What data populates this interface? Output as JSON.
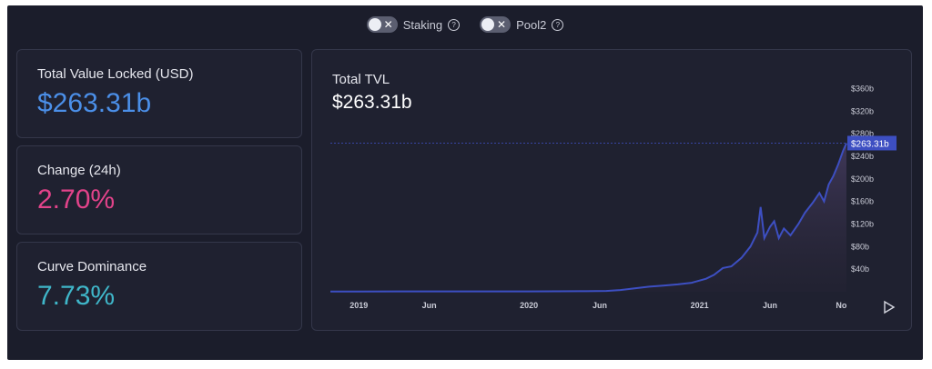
{
  "toggles": [
    {
      "label": "Staking",
      "enabled": false
    },
    {
      "label": "Pool2",
      "enabled": false
    }
  ],
  "help_glyph": "?",
  "off_glyph": "✕",
  "stats": {
    "tvl": {
      "label": "Total Value Locked (USD)",
      "value": "$263.31b",
      "color": "#4b8fe8"
    },
    "change": {
      "label": "Change (24h)",
      "value": "2.70%",
      "color": "#e2438a"
    },
    "dominance": {
      "label": "Curve Dominance",
      "value": "7.73%",
      "color": "#3fb6c9"
    }
  },
  "chart": {
    "title": "Total TVL",
    "value": "$263.31b",
    "current_label": "$263.31b",
    "play_icon": "play-icon"
  },
  "colors": {
    "background": "#1b1d2b",
    "card": "#1f2130",
    "line": "#3d4fc2",
    "label_bg": "#3d4fc2"
  },
  "chart_data": {
    "type": "area",
    "title": "Total TVL",
    "y_unit": "billion USD",
    "ylim": [
      0,
      380
    ],
    "y_ticks": [
      40,
      80,
      120,
      160,
      200,
      240,
      280,
      320,
      360
    ],
    "y_tick_labels": [
      "$40b",
      "$80b",
      "$120b",
      "$160b",
      "$200b",
      "$240b",
      "$280b",
      "$320b",
      "$360b"
    ],
    "x_ticks": [
      "2019-01-01",
      "2019-06-01",
      "2020-01-01",
      "2020-06-01",
      "2021-01-01",
      "2021-06-01",
      "2021-11-01"
    ],
    "x_tick_labels": [
      "2019",
      "Jun",
      "2020",
      "Jun",
      "2021",
      "Jun",
      "No"
    ],
    "current_value": 263.31,
    "grid": false,
    "series": [
      {
        "x": [
          "2018-11-01",
          "2019-01-01",
          "2019-04-01",
          "2019-07-01",
          "2019-10-01",
          "2020-01-01",
          "2020-03-01",
          "2020-05-01",
          "2020-06-15",
          "2020-07-15",
          "2020-08-15",
          "2020-09-15",
          "2020-10-15",
          "2020-11-15",
          "2020-12-15",
          "2021-01-15",
          "2021-02-01",
          "2021-02-20",
          "2021-03-10",
          "2021-04-01",
          "2021-04-20",
          "2021-05-05",
          "2021-05-12",
          "2021-05-20",
          "2021-06-01",
          "2021-06-10",
          "2021-06-20",
          "2021-07-01",
          "2021-07-15",
          "2021-08-01",
          "2021-08-15",
          "2021-09-01",
          "2021-09-15",
          "2021-09-25",
          "2021-10-05",
          "2021-10-15",
          "2021-10-25",
          "2021-11-05",
          "2021-11-12"
        ],
        "y": [
          0.5,
          0.5,
          0.6,
          0.6,
          0.6,
          0.7,
          0.8,
          0.9,
          1.5,
          3,
          6,
          9,
          11,
          13,
          16,
          23,
          30,
          42,
          45,
          60,
          80,
          105,
          150,
          95,
          115,
          125,
          95,
          112,
          100,
          120,
          140,
          158,
          175,
          160,
          190,
          205,
          225,
          250,
          263
        ]
      }
    ]
  }
}
